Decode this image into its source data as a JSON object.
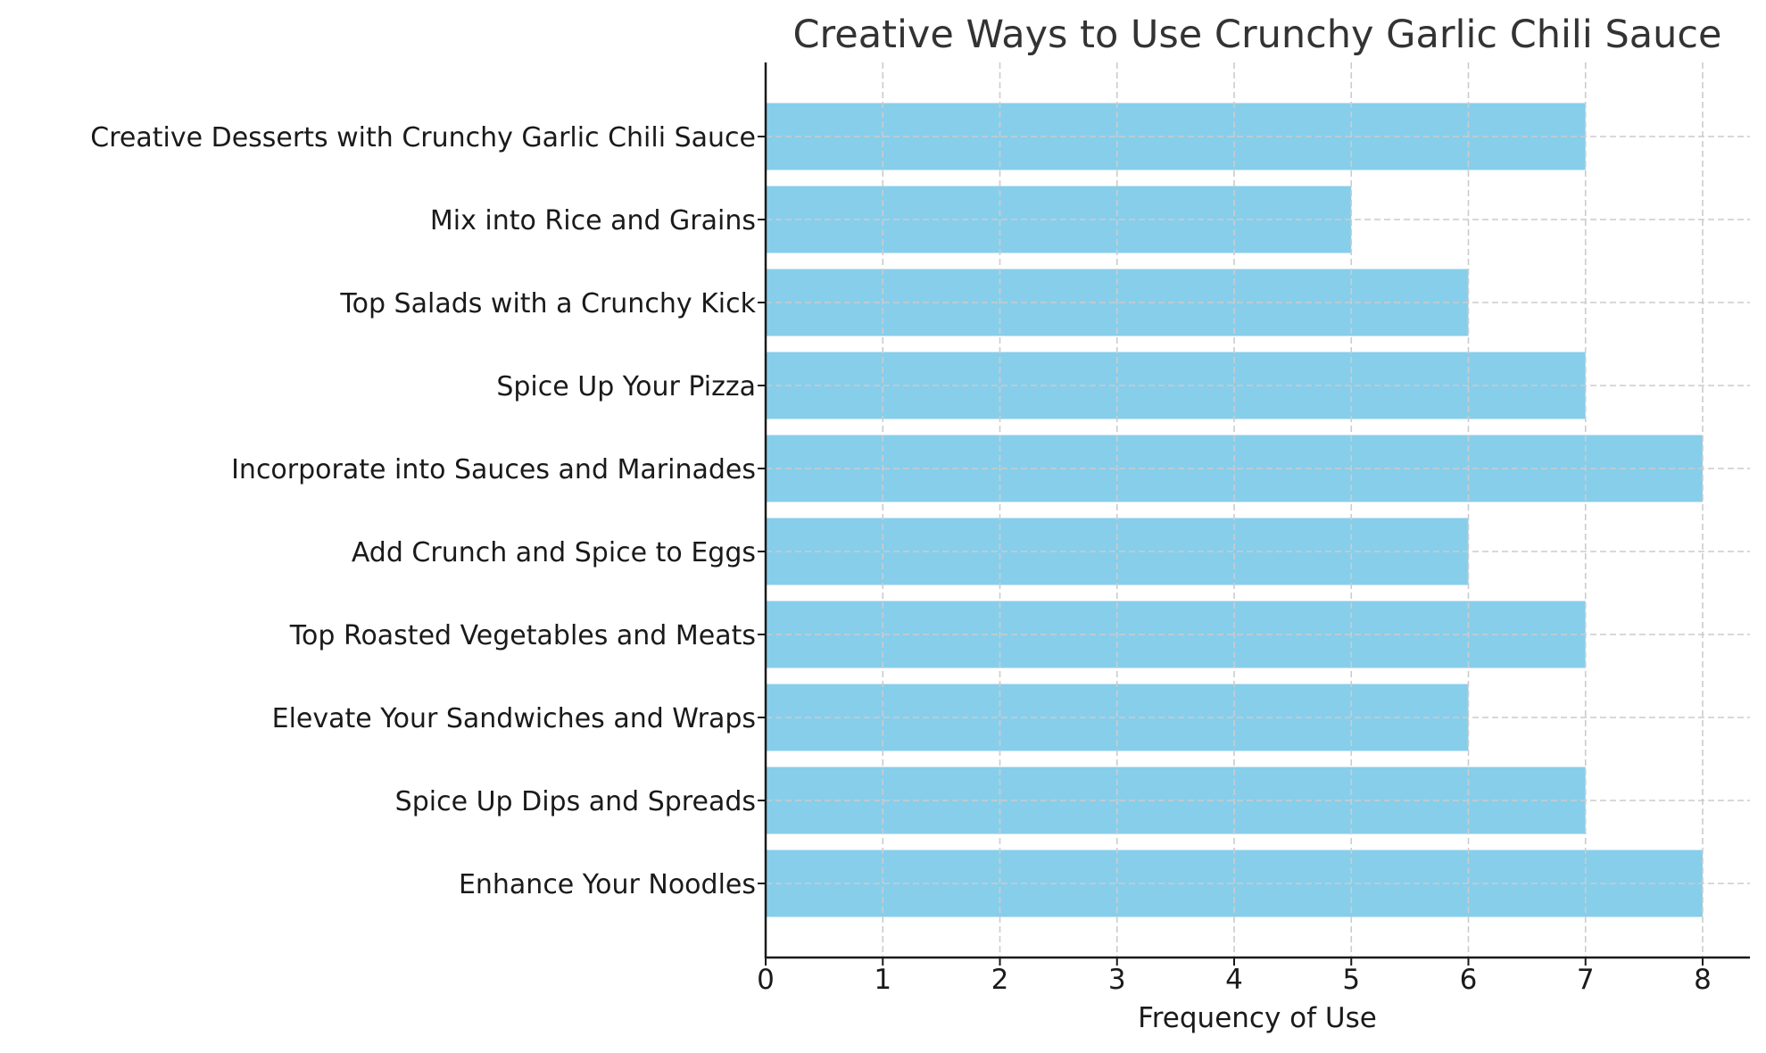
{
  "chart_data": {
    "type": "bar",
    "orientation": "horizontal",
    "title": "Creative Ways to Use Crunchy Garlic Chili Sauce",
    "xlabel": "Frequency of Use",
    "ylabel": "",
    "categories": [
      "Enhance Your Noodles",
      "Spice Up Dips and Spreads",
      "Elevate Your Sandwiches and Wraps",
      "Top Roasted Vegetables and Meats",
      "Add Crunch and Spice to Eggs",
      "Incorporate into Sauces and Marinades",
      "Spice Up Your Pizza",
      "Top Salads with a Crunchy Kick",
      "Mix into Rice and Grains",
      "Creative Desserts with Crunchy Garlic Chili Sauce"
    ],
    "values": [
      8,
      7,
      6,
      7,
      6,
      8,
      7,
      6,
      5,
      7
    ],
    "xlim": [
      0,
      8.4
    ],
    "xticks": [
      0,
      1,
      2,
      3,
      4,
      5,
      6,
      7,
      8
    ],
    "grid": true,
    "legend": null,
    "colors": {
      "bar": "#87CEEB",
      "grid": "#cccccc",
      "axis": "#1a1a1a",
      "title": "#333333"
    }
  }
}
